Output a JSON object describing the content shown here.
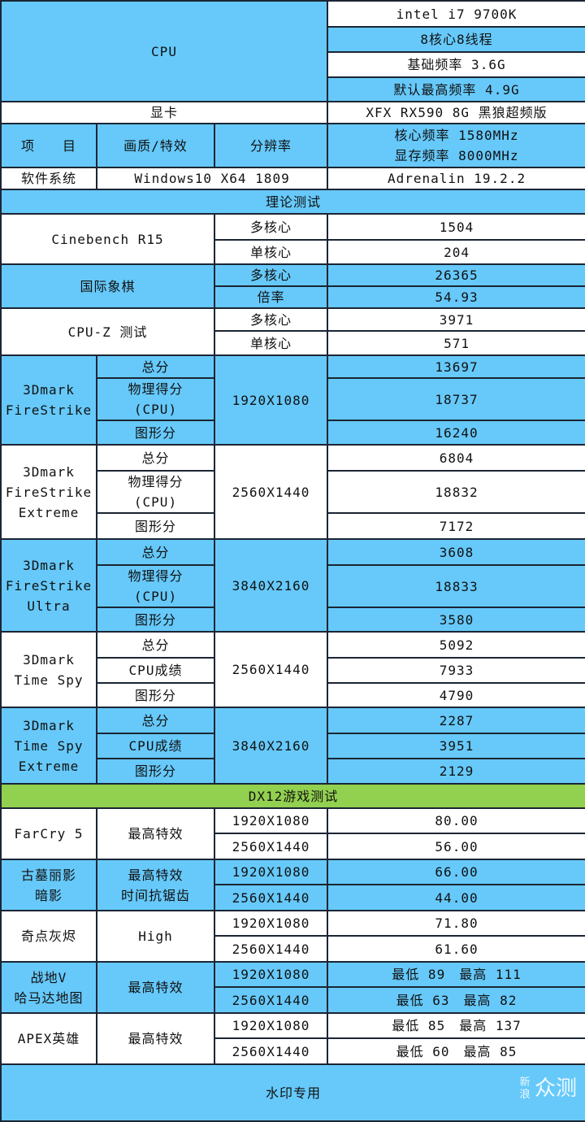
{
  "header": {
    "cpu_label": "CPU",
    "cpu_specs": [
      "intel i7 9700K",
      "8核心8线程",
      "基础频率 3.6G",
      "默认最高频率 4.9G"
    ],
    "gpu_label": "显卡",
    "gpu_model": "XFX RX590 8G 黑狼超频版",
    "col_item": "项　　目",
    "col_quality": "画质/特效",
    "col_resolution": "分辨率",
    "gpu_clocks": [
      "核心频率 1580MHz",
      "显存频率 8000MHz"
    ],
    "software_label": "软件系统",
    "os": "Windows10 X64 1809",
    "driver": "Adrenalin 19.2.2"
  },
  "theory_title": "理论测试",
  "simple_tests": [
    {
      "name": "Cinebench R15",
      "rows": [
        {
          "label": "多核心",
          "value": "1504"
        },
        {
          "label": "单核心",
          "value": "204"
        }
      ]
    },
    {
      "name": "国际象棋",
      "rows": [
        {
          "label": "多核心",
          "value": "26365"
        },
        {
          "label": "倍率",
          "value": "54.93"
        }
      ]
    },
    {
      "name": "CPU-Z 测试",
      "rows": [
        {
          "label": "多核心",
          "value": "3971"
        },
        {
          "label": "单核心",
          "value": "571"
        }
      ]
    }
  ],
  "tdmark": [
    {
      "name_lines": [
        "3Dmark",
        "FireStrike"
      ],
      "resolution": "1920X1080",
      "rows": [
        {
          "label_lines": [
            "总分"
          ],
          "value": "13697"
        },
        {
          "label_lines": [
            "物理得分",
            "(CPU)"
          ],
          "value": "18737"
        },
        {
          "label_lines": [
            "图形分"
          ],
          "value": "16240"
        }
      ]
    },
    {
      "name_lines": [
        "3Dmark",
        "FireStrike",
        "Extreme"
      ],
      "resolution": "2560X1440",
      "rows": [
        {
          "label_lines": [
            "总分"
          ],
          "value": "6804"
        },
        {
          "label_lines": [
            "物理得分",
            "(CPU)"
          ],
          "value": "18832"
        },
        {
          "label_lines": [
            "图形分"
          ],
          "value": "7172"
        }
      ]
    },
    {
      "name_lines": [
        "3Dmark",
        "FireStrike",
        "Ultra"
      ],
      "resolution": "3840X2160",
      "rows": [
        {
          "label_lines": [
            "总分"
          ],
          "value": "3608"
        },
        {
          "label_lines": [
            "物理得分",
            "(CPU)"
          ],
          "value": "18833"
        },
        {
          "label_lines": [
            "图形分"
          ],
          "value": "3580"
        }
      ]
    },
    {
      "name_lines": [
        "3Dmark",
        "Time Spy"
      ],
      "resolution": "2560X1440",
      "rows": [
        {
          "label_lines": [
            "总分"
          ],
          "value": "5092"
        },
        {
          "label_lines": [
            "CPU成绩"
          ],
          "value": "7933"
        },
        {
          "label_lines": [
            "图形分"
          ],
          "value": "4790"
        }
      ]
    },
    {
      "name_lines": [
        "3Dmark",
        "Time Spy",
        "Extreme"
      ],
      "resolution": "3840X2160",
      "rows": [
        {
          "label_lines": [
            "总分"
          ],
          "value": "2287"
        },
        {
          "label_lines": [
            "CPU成绩"
          ],
          "value": "3951"
        },
        {
          "label_lines": [
            "图形分"
          ],
          "value": "2129"
        }
      ]
    }
  ],
  "dx12_title": "DX12游戏测试",
  "games": [
    {
      "name_lines": [
        "FarCry 5"
      ],
      "setting_lines": [
        "最高特效"
      ],
      "rows": [
        {
          "resolution": "1920X1080",
          "value": "80.00"
        },
        {
          "resolution": "2560X1440",
          "value": "56.00"
        }
      ]
    },
    {
      "name_lines": [
        "古墓丽影",
        "暗影"
      ],
      "setting_lines": [
        "最高特效",
        "时间抗锯齿"
      ],
      "rows": [
        {
          "resolution": "1920X1080",
          "value": "66.00"
        },
        {
          "resolution": "2560X1440",
          "value": "44.00"
        }
      ]
    },
    {
      "name_lines": [
        "奇点灰烬"
      ],
      "setting_lines": [
        "High"
      ],
      "rows": [
        {
          "resolution": "1920X1080",
          "value": "71.80"
        },
        {
          "resolution": "2560X1440",
          "value": "61.60"
        }
      ]
    },
    {
      "name_lines": [
        "战地V",
        "哈马达地图"
      ],
      "setting_lines": [
        "最高特效"
      ],
      "rows": [
        {
          "resolution": "1920X1080",
          "value": "最低 89　最高 111"
        },
        {
          "resolution": "2560X1440",
          "value": "最低 63　最高 82"
        }
      ]
    },
    {
      "name_lines": [
        "APEX英雄"
      ],
      "setting_lines": [
        "最高特效"
      ],
      "rows": [
        {
          "resolution": "1920X1080",
          "value": "最低 85　最高 137"
        },
        {
          "resolution": "2560X1440",
          "value": "最低 60　最高 85"
        }
      ]
    }
  ],
  "watermark": "水印专用",
  "logo": {
    "small": "新浪",
    "large": "众测"
  },
  "colors": {
    "blue": "#66c9fa",
    "white": "#ffffff",
    "green": "#92d050",
    "border": "#1b2533"
  }
}
